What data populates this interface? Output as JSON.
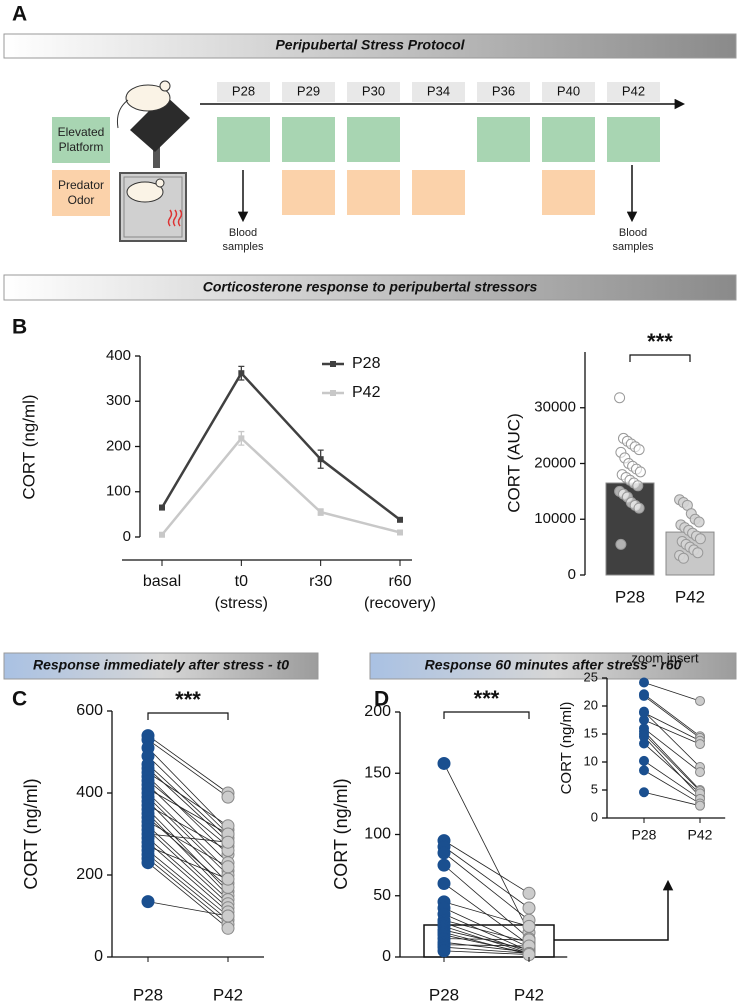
{
  "panel_labels": [
    "A",
    "B",
    "C",
    "D"
  ],
  "protocol": {
    "title": "Peripubertal Stress Protocol",
    "days": [
      "P28",
      "P29",
      "P30",
      "P34",
      "P36",
      "P40",
      "P42"
    ],
    "stressors": [
      {
        "label": "Elevated Platform",
        "color": "#a8d5b2",
        "days": [
          "P28",
          "P29",
          "P30",
          "P36",
          "P40",
          "P42"
        ]
      },
      {
        "label": "Predator Odor",
        "color": "#fbd2aa",
        "days": [
          "P29",
          "P30",
          "P34",
          "P40"
        ]
      }
    ],
    "blood_samples": {
      "label": "Blood samples",
      "days": [
        "P28",
        "P42"
      ]
    }
  },
  "section_titles": {
    "cort": "Corticosterone response to peripubertal stressors",
    "t0": "Response immediately after stress - t0",
    "r60": "Response 60 minutes after stress - r60"
  },
  "chart_data": [
    {
      "type": "line",
      "y_label": "CORT (ng/ml)",
      "categories": [
        "basal",
        "t0",
        "r30",
        "r60"
      ],
      "category_sublabels": [
        null,
        "(stress)",
        null,
        "(recovery)"
      ],
      "ylim": [
        0,
        400
      ],
      "yticks": [
        0,
        100,
        200,
        300,
        400
      ],
      "series": [
        {
          "name": "P28",
          "color": "#404040",
          "values": [
            65,
            362,
            172,
            38
          ],
          "errors": [
            5,
            15,
            20,
            4
          ]
        },
        {
          "name": "P42",
          "color": "#c8c8c8",
          "values": [
            5,
            218,
            55,
            10
          ],
          "errors": [
            3,
            15,
            7,
            3
          ]
        }
      ]
    },
    {
      "type": "bar",
      "y_label": "CORT (AUC)",
      "categories": [
        "P28",
        "P42"
      ],
      "values": [
        16500,
        7700
      ],
      "colors": [
        "#404040",
        "#c8c8c8"
      ],
      "ylim": [
        0,
        40000
      ],
      "yticks": [
        0,
        10000,
        20000,
        30000
      ],
      "significance": "***",
      "points": [
        [
          31800,
          24500,
          24000,
          23500,
          23000,
          22500,
          22000,
          21000,
          20000,
          19500,
          19000,
          18500,
          18000,
          17500,
          17000,
          16500,
          16000,
          15000,
          14500,
          14000,
          13000,
          12500,
          12000,
          5500
        ],
        [
          13500,
          13000,
          12500,
          11000,
          10000,
          9500,
          9000,
          8500,
          8000,
          7500,
          7000,
          6500,
          6000,
          5500,
          5000,
          4500,
          4000,
          3500,
          3000
        ]
      ]
    },
    {
      "type": "paired",
      "y_label": "CORT (ng/ml)",
      "categories": [
        "P28",
        "P42"
      ],
      "ylim": [
        0,
        600
      ],
      "yticks": [
        0,
        200,
        400,
        600
      ],
      "significance": "***",
      "groups": [
        {
          "color": "#1a4f8f",
          "values": [
            540,
            530,
            510,
            490,
            470,
            460,
            450,
            440,
            430,
            420,
            410,
            400,
            390,
            380,
            370,
            360,
            350,
            340,
            330,
            320,
            310,
            300,
            290,
            280,
            270,
            260,
            250,
            240,
            230,
            135
          ]
        },
        {
          "color": "#cccccc",
          "values": [
            400,
            390,
            310,
            300,
            290,
            280,
            320,
            250,
            270,
            230,
            300,
            210,
            200,
            180,
            260,
            160,
            150,
            170,
            220,
            140,
            130,
            280,
            120,
            110,
            190,
            100,
            90,
            80,
            70,
            100
          ]
        }
      ]
    },
    {
      "type": "paired",
      "y_label": "CORT (ng/ml)",
      "categories": [
        "P28",
        "P42"
      ],
      "ylim": [
        0,
        200
      ],
      "yticks": [
        0,
        50,
        100,
        150,
        200
      ],
      "significance": "***",
      "groups": [
        {
          "color": "#1a4f8f",
          "values": [
            158,
            95,
            90,
            85,
            75,
            60,
            45,
            40,
            35,
            30,
            28,
            25,
            22,
            20,
            18,
            15,
            12,
            10,
            8,
            5
          ]
        },
        {
          "color": "#cccccc",
          "values": [
            20,
            52,
            40,
            30,
            15,
            10,
            25,
            8,
            5,
            12,
            4,
            3,
            6,
            2,
            3,
            14,
            4,
            9,
            3,
            2
          ]
        }
      ]
    },
    {
      "type": "paired",
      "title": "zoom insert",
      "y_label": "CORT (ng/ml)",
      "categories": [
        "P28",
        "P42"
      ],
      "ylim": [
        0,
        25
      ],
      "yticks": [
        0,
        5,
        10,
        15,
        20,
        25
      ],
      "groups": [
        {
          "color": "#1a4f8f",
          "values": [
            24.2,
            22.1,
            21.8,
            19,
            18.8,
            17.5,
            16,
            15.5,
            15,
            14.5,
            13.3,
            10.2,
            8.5,
            4.6
          ]
        },
        {
          "color": "#cccccc",
          "values": [
            20.9,
            14.6,
            14.3,
            9.1,
            13.8,
            13.2,
            8.2,
            5,
            4.8,
            3.8,
            4.4,
            3.4,
            2.6,
            2.2
          ]
        }
      ]
    }
  ]
}
